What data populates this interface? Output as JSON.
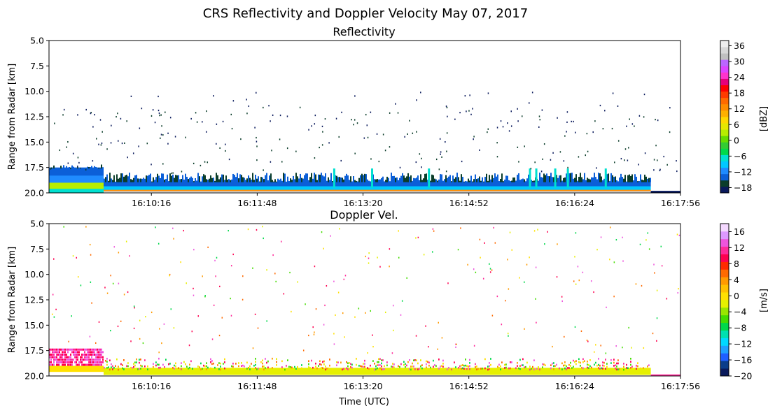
{
  "figure": {
    "suptitle": "CRS Reflectivity and Doppler Velocity May 07, 2017"
  },
  "chart_data": [
    {
      "type": "heatmap",
      "title": "Reflectivity",
      "xlabel": "",
      "ylabel": "Range from Radar [km]",
      "x_tick_labels": [
        "16:10:16",
        "16:11:48",
        "16:13:20",
        "16:14:52",
        "16:16:24",
        "16:17:56"
      ],
      "x_tick_times": [
        "16:10:16",
        "16:11:48",
        "16:13:20",
        "16:14:52",
        "16:16:24",
        "16:17:56"
      ],
      "x_range": [
        "16:08:47",
        "16:17:56"
      ],
      "y_ticks": [
        5.0,
        7.5,
        10.0,
        12.5,
        15.0,
        17.5,
        20.0
      ],
      "y_tick_labels": [
        "5.0",
        "7.5",
        "10.0",
        "12.5",
        "15.0",
        "17.5",
        "20.0"
      ],
      "ylim": [
        20.0,
        5.0
      ],
      "y_inverted": true,
      "colorbar": {
        "label": "[dBZ]",
        "range": [
          -20,
          38
        ],
        "ticks": [
          36,
          30,
          24,
          18,
          12,
          6,
          0,
          -6,
          -12,
          -18
        ],
        "tick_labels": [
          "36",
          "30",
          "24",
          "18",
          "12",
          "6",
          "0",
          "−6",
          "−12",
          "−18"
        ],
        "colors": [
          "#0a1a5c",
          "#0b3d2a",
          "#0b5fd8",
          "#1f8bff",
          "#00c8ff",
          "#00e0d0",
          "#00d94a",
          "#33cc33",
          "#66dd00",
          "#b7ee00",
          "#e6e600",
          "#ffd700",
          "#ffb000",
          "#ff8c00",
          "#ff6a00",
          "#ff3b00",
          "#ff0000",
          "#e6007a",
          "#ff33cc",
          "#dd44ff",
          "#bb66ff",
          "#c0c0c0",
          "#d8d8d8",
          "#eeeeee"
        ]
      },
      "grid": false
    },
    {
      "type": "heatmap",
      "title": "Doppler Vel.",
      "xlabel": "Time (UTC)",
      "ylabel": "Range from Radar [km]",
      "x_tick_labels": [
        "16:10:16",
        "16:11:48",
        "16:13:20",
        "16:14:52",
        "16:16:24",
        "16:17:56"
      ],
      "x_tick_times": [
        "16:10:16",
        "16:11:48",
        "16:13:20",
        "16:14:52",
        "16:16:24",
        "16:17:56"
      ],
      "x_range": [
        "16:08:47",
        "16:17:56"
      ],
      "y_ticks": [
        5.0,
        7.5,
        10.0,
        12.5,
        15.0,
        17.5,
        20.0
      ],
      "y_tick_labels": [
        "5.0",
        "7.5",
        "10.0",
        "12.5",
        "15.0",
        "17.5",
        "20.0"
      ],
      "ylim": [
        20.0,
        5.0
      ],
      "y_inverted": true,
      "colorbar": {
        "label": "[m/s]",
        "range": [
          -20,
          18
        ],
        "ticks": [
          16,
          12,
          8,
          4,
          0,
          -4,
          -8,
          -12,
          -16,
          -20
        ],
        "tick_labels": [
          "16",
          "12",
          "8",
          "4",
          "0",
          "−4",
          "−8",
          "−12",
          "−16",
          "−20"
        ],
        "colors": [
          "#0a1a5c",
          "#0b3d8a",
          "#1f5fff",
          "#1fa0ff",
          "#00d9ff",
          "#00e0b0",
          "#00d94a",
          "#44dd00",
          "#99e600",
          "#e6f000",
          "#ffe000",
          "#ffc000",
          "#ff9a00",
          "#ff6a00",
          "#ff2a00",
          "#ff0050",
          "#ff2a9a",
          "#ee55dd",
          "#dd99ff",
          "#f4d8ff"
        ]
      },
      "grid": false
    }
  ]
}
